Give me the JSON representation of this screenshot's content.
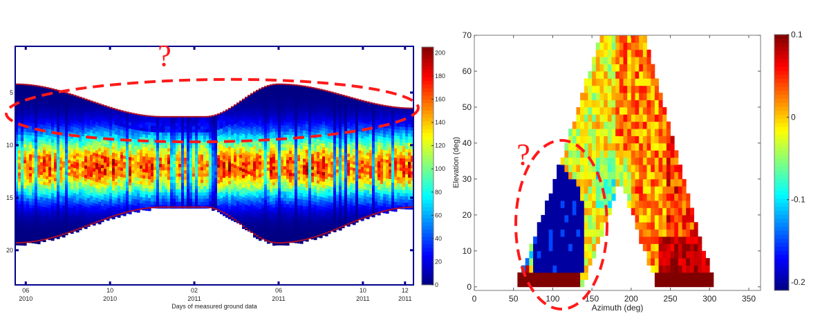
{
  "chart_data": [
    {
      "type": "heatmap",
      "title": "",
      "xlabel": "Days of measured ground data",
      "ylabel": "",
      "x_unit": "months since 06/2010",
      "xlim": [
        -0.5,
        18.4
      ],
      "ylim": [
        23.3,
        0.6
      ],
      "y_reversed": true,
      "xticks": [
        {
          "value": 0,
          "label": [
            "06",
            "2010"
          ]
        },
        {
          "value": 4,
          "label": [
            "10",
            "2010"
          ]
        },
        {
          "value": 8,
          "label": [
            "02",
            "2011"
          ]
        },
        {
          "value": 12,
          "label": [
            "06",
            "2011"
          ]
        },
        {
          "value": 16,
          "label": [
            "10",
            "2011"
          ]
        },
        {
          "value": 18,
          "label": [
            "12",
            "2011"
          ]
        }
      ],
      "yticks": [
        5,
        10,
        15,
        20
      ],
      "colorbar": {
        "min": 0,
        "max": 205,
        "ticks": [
          0,
          20,
          40,
          60,
          80,
          100,
          120,
          140,
          160,
          180,
          200
        ],
        "colormap": "jet"
      },
      "data_description_shape": {
        "upper_boundary": {
          "x": [
            -0.5,
            6.5,
            8.5,
            12,
            18.4
          ],
          "y": [
            4.2,
            7.3,
            7.3,
            4.2,
            6.5
          ]
        },
        "lower_boundary": {
          "x": [
            -0.5,
            6.5,
            8.5,
            12,
            18.4
          ],
          "y": [
            19.3,
            15.9,
            15.9,
            19.3,
            15.9
          ]
        },
        "peak_row": 12,
        "peak_value": 175
      }
    },
    {
      "type": "heatmap",
      "title": "",
      "xlabel": "Azimuth (deg)",
      "ylabel": "Elevation (deg)",
      "xlim": [
        0,
        365
      ],
      "ylim": [
        -1,
        70
      ],
      "xticks": [
        0,
        50,
        100,
        150,
        200,
        250,
        300,
        350
      ],
      "yticks": [
        0,
        10,
        20,
        30,
        40,
        50,
        60,
        70
      ],
      "colorbar": {
        "min": -0.21,
        "max": 0.1,
        "ticks": [
          0.1,
          0,
          -0.1,
          -0.2
        ],
        "colormap": "jet"
      },
      "cell_size": {
        "azimuth": 5,
        "elevation": 2
      }
    }
  ],
  "annotations": {
    "left_question": "?",
    "right_question": "?"
  },
  "colors": {
    "annotation": "#ff1a1a",
    "axis": "#00008b"
  }
}
